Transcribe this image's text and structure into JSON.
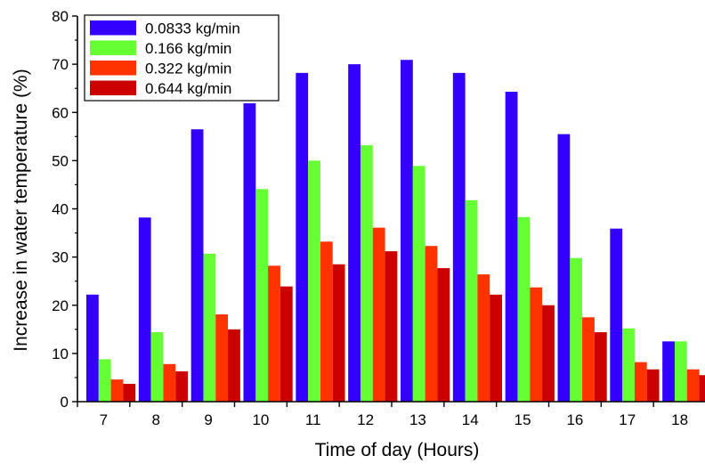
{
  "chart_data": {
    "type": "bar",
    "xlabel": "Time of day (Hours)",
    "ylabel": "Increase in water temperature (%)",
    "categories": [
      "7",
      "8",
      "9",
      "10",
      "11",
      "12",
      "13",
      "14",
      "15",
      "16",
      "17",
      "18"
    ],
    "ylim": [
      0,
      80
    ],
    "yticks": [
      0,
      10,
      20,
      30,
      40,
      50,
      60,
      70,
      80
    ],
    "grid": false,
    "legend_position": "top-left",
    "series": [
      {
        "name": "0.0833 kg/min",
        "color": "#3300ff",
        "values": [
          22.2,
          38.2,
          56.5,
          61.9,
          68.2,
          70.0,
          70.9,
          68.2,
          64.3,
          55.5,
          35.9,
          12.5
        ]
      },
      {
        "name": "0.166 kg/min",
        "color": "#66ff33",
        "values": [
          8.8,
          14.4,
          30.7,
          44.1,
          50.0,
          53.2,
          48.9,
          41.8,
          38.3,
          29.8,
          15.2,
          12.5
        ]
      },
      {
        "name": "0.322 kg/min",
        "color": "#ff3300",
        "values": [
          4.6,
          7.8,
          18.1,
          28.2,
          33.2,
          36.1,
          32.3,
          26.4,
          23.7,
          17.5,
          8.2,
          6.7
        ]
      },
      {
        "name": "0.644 kg/min",
        "color": "#cc0000",
        "values": [
          3.7,
          6.3,
          15.0,
          23.9,
          28.5,
          31.2,
          27.7,
          22.2,
          20.0,
          14.4,
          6.7,
          5.5
        ]
      }
    ]
  }
}
